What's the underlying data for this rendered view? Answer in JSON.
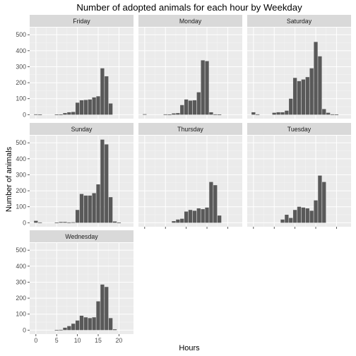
{
  "chart_data": {
    "type": "bar",
    "title": "Number of adopted animals for each hour by Weekday",
    "xlabel": "Hours",
    "ylabel": "Number of animals",
    "xlim": [
      -1.5,
      23.5
    ],
    "ylim": [
      -25,
      545
    ],
    "x_ticks": [
      0,
      5,
      10,
      15,
      20
    ],
    "y_ticks": [
      0,
      100,
      200,
      300,
      400,
      500
    ],
    "grid": true,
    "colors": {
      "bar": "#595959",
      "panel": "#ebebeb",
      "strip": "#d9d9d9",
      "grid_major": "#ffffff"
    },
    "facets": [
      {
        "name": "Friday",
        "x": [
          0,
          1,
          5,
          6,
          7,
          8,
          9,
          10,
          11,
          12,
          13,
          14,
          15,
          16,
          17,
          18
        ],
        "values": [
          2,
          1,
          1,
          1,
          10,
          15,
          17,
          75,
          90,
          92,
          95,
          108,
          115,
          290,
          240,
          70
        ]
      },
      {
        "name": "Monday",
        "x": [
          0,
          5,
          6,
          7,
          8,
          9,
          10,
          11,
          12,
          13,
          14,
          15,
          16,
          17,
          18
        ],
        "values": [
          3,
          2,
          1,
          8,
          10,
          60,
          95,
          88,
          90,
          140,
          340,
          335,
          15,
          2,
          1
        ]
      },
      {
        "name": "Saturday",
        "x": [
          0,
          1,
          5,
          6,
          7,
          8,
          9,
          10,
          11,
          12,
          13,
          14,
          15,
          16,
          17,
          18,
          19,
          20
        ],
        "values": [
          15,
          2,
          12,
          15,
          15,
          25,
          100,
          230,
          210,
          220,
          235,
          290,
          455,
          365,
          35,
          12,
          2,
          1
        ]
      },
      {
        "name": "Sunday",
        "x": [
          0,
          1,
          5,
          6,
          7,
          8,
          9,
          10,
          11,
          12,
          13,
          14,
          15,
          16,
          17,
          18,
          19,
          20
        ],
        "values": [
          12,
          2,
          1,
          5,
          5,
          2,
          3,
          80,
          180,
          170,
          170,
          185,
          240,
          520,
          490,
          160,
          8,
          1
        ]
      },
      {
        "name": "Thursday",
        "x": [
          7,
          8,
          9,
          10,
          11,
          12,
          13,
          14,
          15,
          16,
          17,
          18
        ],
        "values": [
          10,
          20,
          25,
          70,
          80,
          75,
          90,
          85,
          95,
          255,
          235,
          45
        ]
      },
      {
        "name": "Tuesday",
        "x": [
          7,
          8,
          9,
          10,
          11,
          12,
          13,
          14,
          15,
          16,
          17
        ],
        "values": [
          20,
          50,
          30,
          80,
          100,
          95,
          90,
          75,
          140,
          295,
          255
        ]
      },
      {
        "name": "Wednesday",
        "x": [
          5,
          6,
          7,
          8,
          9,
          10,
          11,
          12,
          13,
          14,
          15,
          16,
          17,
          18,
          19
        ],
        "values": [
          1,
          2,
          15,
          25,
          40,
          60,
          90,
          80,
          75,
          80,
          180,
          285,
          270,
          75,
          5
        ]
      }
    ]
  }
}
